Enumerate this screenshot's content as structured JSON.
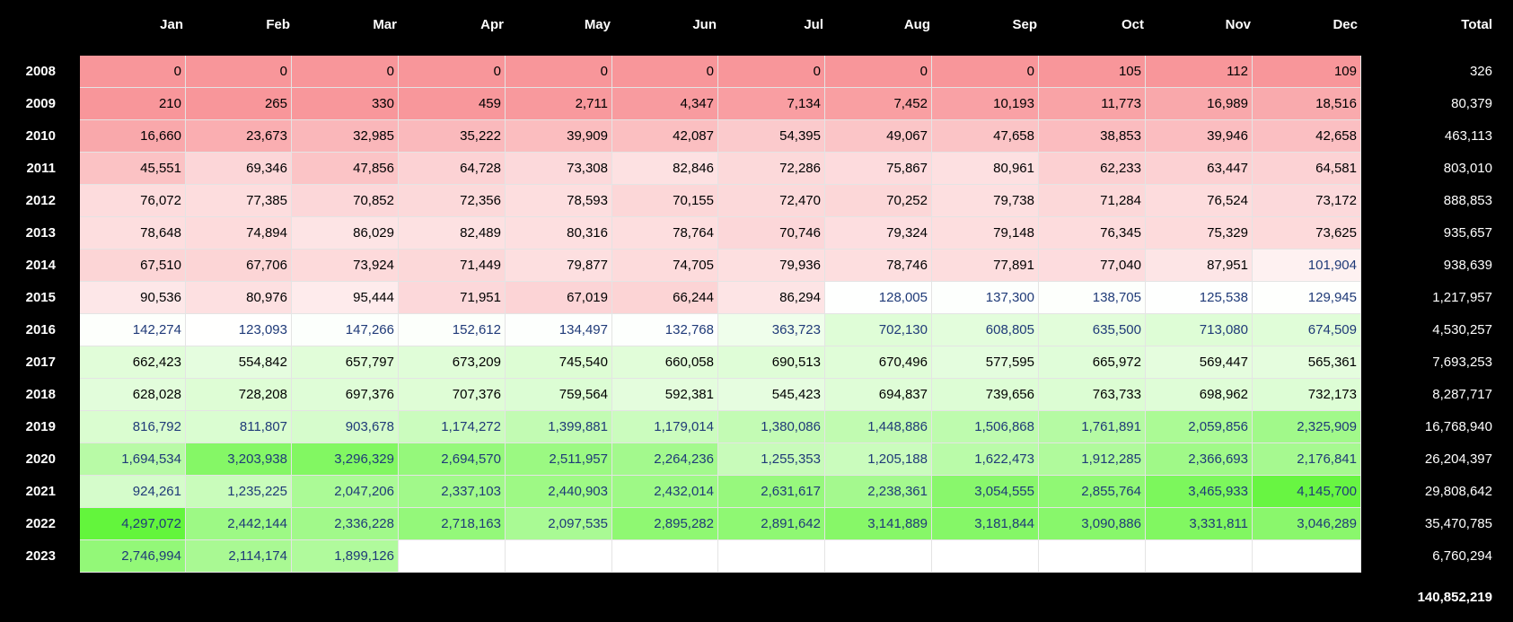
{
  "header": {
    "months": [
      "Jan",
      "Feb",
      "Mar",
      "Apr",
      "May",
      "Jun",
      "Jul",
      "Aug",
      "Sep",
      "Oct",
      "Nov",
      "Dec"
    ],
    "total_label": "Total"
  },
  "table": {
    "rows": [
      {
        "year": "2008",
        "values": [
          "0",
          "0",
          "0",
          "0",
          "0",
          "0",
          "0",
          "0",
          "0",
          "105",
          "112",
          "109"
        ],
        "total": "326"
      },
      {
        "year": "2009",
        "values": [
          "210",
          "265",
          "330",
          "459",
          "2,711",
          "4,347",
          "7,134",
          "7,452",
          "10,193",
          "11,773",
          "16,989",
          "18,516"
        ],
        "total": "80,379"
      },
      {
        "year": "2010",
        "values": [
          "16,660",
          "23,673",
          "32,985",
          "35,222",
          "39,909",
          "42,087",
          "54,395",
          "49,067",
          "47,658",
          "38,853",
          "39,946",
          "42,658"
        ],
        "total": "463,113"
      },
      {
        "year": "2011",
        "values": [
          "45,551",
          "69,346",
          "47,856",
          "64,728",
          "73,308",
          "82,846",
          "72,286",
          "75,867",
          "80,961",
          "62,233",
          "63,447",
          "64,581"
        ],
        "total": "803,010"
      },
      {
        "year": "2012",
        "values": [
          "76,072",
          "77,385",
          "70,852",
          "72,356",
          "78,593",
          "70,155",
          "72,470",
          "70,252",
          "79,738",
          "71,284",
          "76,524",
          "73,172"
        ],
        "total": "888,853"
      },
      {
        "year": "2013",
        "values": [
          "78,648",
          "74,894",
          "86,029",
          "82,489",
          "80,316",
          "78,764",
          "70,746",
          "79,324",
          "79,148",
          "76,345",
          "75,329",
          "73,625"
        ],
        "total": "935,657"
      },
      {
        "year": "2014",
        "values": [
          "67,510",
          "67,706",
          "73,924",
          "71,449",
          "79,877",
          "74,705",
          "79,936",
          "78,746",
          "77,891",
          "77,040",
          "87,951",
          "101,904"
        ],
        "total": "938,639"
      },
      {
        "year": "2015",
        "values": [
          "90,536",
          "80,976",
          "95,444",
          "71,951",
          "67,019",
          "66,244",
          "86,294",
          "128,005",
          "137,300",
          "138,705",
          "125,538",
          "129,945"
        ],
        "total": "1,217,957"
      },
      {
        "year": "2016",
        "values": [
          "142,274",
          "123,093",
          "147,266",
          "152,612",
          "134,497",
          "132,768",
          "363,723",
          "702,130",
          "608,805",
          "635,500",
          "713,080",
          "674,509"
        ],
        "total": "4,530,257"
      },
      {
        "year": "2017",
        "values": [
          "662,423",
          "554,842",
          "657,797",
          "673,209",
          "745,540",
          "660,058",
          "690,513",
          "670,496",
          "577,595",
          "665,972",
          "569,447",
          "565,361"
        ],
        "total": "7,693,253"
      },
      {
        "year": "2018",
        "values": [
          "628,028",
          "728,208",
          "697,376",
          "707,376",
          "759,564",
          "592,381",
          "545,423",
          "694,837",
          "739,656",
          "763,733",
          "698,962",
          "732,173"
        ],
        "total": "8,287,717"
      },
      {
        "year": "2019",
        "values": [
          "816,792",
          "811,807",
          "903,678",
          "1,174,272",
          "1,399,881",
          "1,179,014",
          "1,380,086",
          "1,448,886",
          "1,506,868",
          "1,761,891",
          "2,059,856",
          "2,325,909"
        ],
        "total": "16,768,940"
      },
      {
        "year": "2020",
        "values": [
          "1,694,534",
          "3,203,938",
          "3,296,329",
          "2,694,570",
          "2,511,957",
          "2,264,236",
          "1,255,353",
          "1,205,188",
          "1,622,473",
          "1,912,285",
          "2,366,693",
          "2,176,841"
        ],
        "total": "26,204,397"
      },
      {
        "year": "2021",
        "values": [
          "924,261",
          "1,235,225",
          "2,047,206",
          "2,337,103",
          "2,440,903",
          "2,432,014",
          "2,631,617",
          "2,238,361",
          "3,054,555",
          "2,855,764",
          "3,465,933",
          "4,145,700"
        ],
        "total": "29,808,642"
      },
      {
        "year": "2022",
        "values": [
          "4,297,072",
          "2,442,144",
          "2,336,228",
          "2,718,163",
          "2,097,535",
          "2,895,282",
          "2,891,642",
          "3,141,889",
          "3,181,844",
          "3,090,886",
          "3,331,811",
          "3,046,289"
        ],
        "total": "35,470,785"
      },
      {
        "year": "2023",
        "values": [
          "2,746,994",
          "2,114,174",
          "1,899,126",
          "",
          "",
          "",
          "",
          "",
          "",
          "",
          "",
          ""
        ],
        "total": "6,760,294"
      }
    ],
    "grand_total": "140,852,219"
  },
  "colors": {
    "background": "#000000",
    "red_high": "#F8969A",
    "green_high": "#63F53C",
    "neutral": "#FFFFFF",
    "blue_text": "#1F3A78"
  }
}
